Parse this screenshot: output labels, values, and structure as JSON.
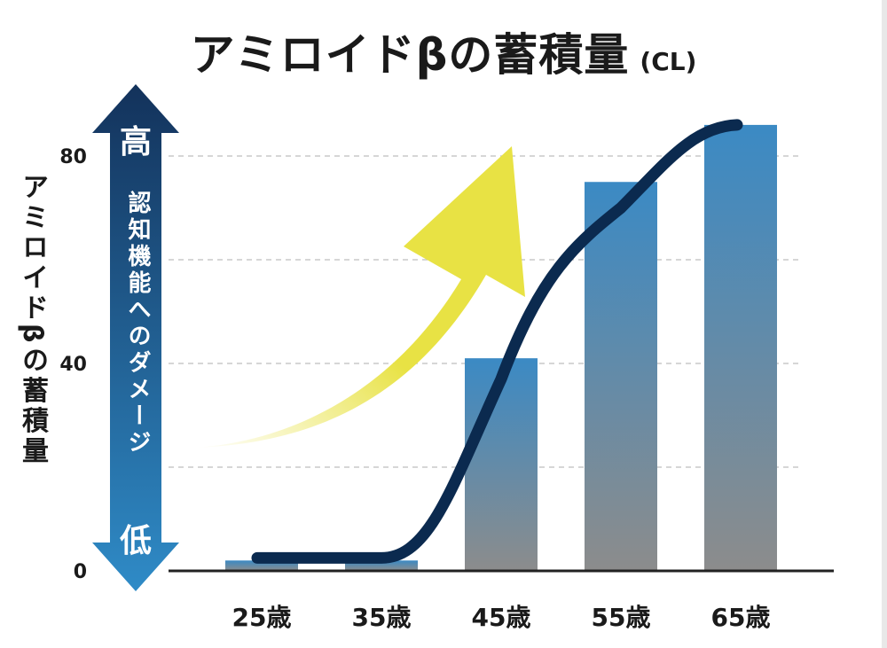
{
  "title": {
    "main": "アミロイドβの蓄積量",
    "unit": "(CL)"
  },
  "y_axis_label": "アミロイドβの蓄積量",
  "arrow": {
    "top_label": "高",
    "bottom_label": "低",
    "middle_text": "認知機能へのダメージ"
  },
  "colors": {
    "bar_top": "#3b8ac4",
    "bar_bottom": "#8c8c8c",
    "line": "#0b2a4f",
    "arrow_top": "#13325b",
    "arrow_bottom": "#2f8bc7",
    "yellow_arrow": "#e8e244"
  },
  "chart_data": {
    "type": "bar",
    "categories": [
      "25歳",
      "35歳",
      "45歳",
      "55歳",
      "65歳"
    ],
    "values": [
      2,
      2,
      41,
      75,
      86
    ],
    "ylim": [
      0,
      80
    ],
    "yticks": [
      0,
      40,
      80
    ],
    "grid": true,
    "trend_line": [
      {
        "x": "25歳",
        "y": 2.5
      },
      {
        "x": "35歳",
        "y": 2.5
      },
      {
        "x": "45歳",
        "y": 37
      },
      {
        "x": "55歳",
        "y": 70
      },
      {
        "x": "65歳",
        "y": 86
      }
    ]
  }
}
